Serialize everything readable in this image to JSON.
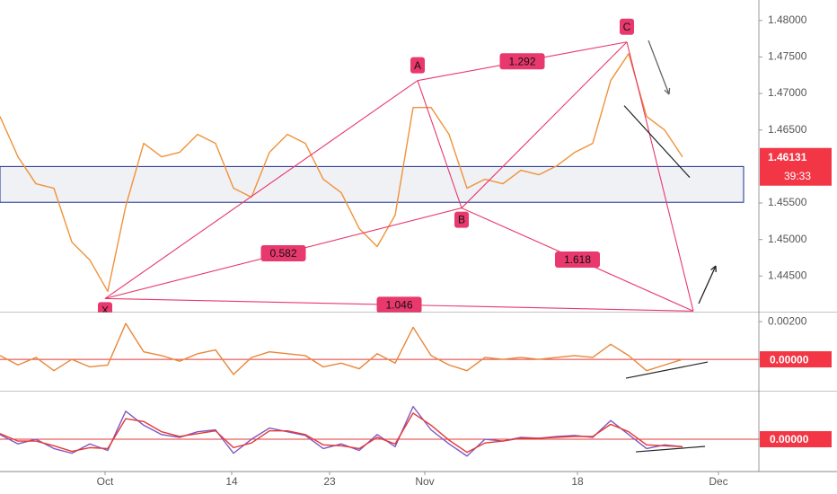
{
  "chart_data": [
    {
      "type": "line",
      "xlim": [
        0,
        41.5
      ],
      "ylim": [
        1.44,
        1.4828
      ],
      "yticks": [
        {
          "value": 1.48,
          "label": "1.48000"
        },
        {
          "value": 1.475,
          "label": "1.47500"
        },
        {
          "value": 1.47,
          "label": "1.47000"
        },
        {
          "value": 1.465,
          "label": "1.46500"
        },
        {
          "value": 1.455,
          "label": "1.45500"
        },
        {
          "value": 1.45,
          "label": "1.45000"
        },
        {
          "value": 1.445,
          "label": "1.44500"
        }
      ],
      "series": [
        {
          "name": null,
          "color": "#f0923a",
          "values": [
            1.46685,
            1.46133,
            1.45764,
            1.45703,
            1.44966,
            1.4472,
            1.4429,
            1.45457,
            1.46317,
            1.46133,
            1.46194,
            1.4644,
            1.46317,
            1.45703,
            1.4558,
            1.46194,
            1.4644,
            1.46317,
            1.45826,
            1.45641,
            1.4515,
            1.44904,
            1.45334,
            1.46808,
            1.46808,
            1.4644,
            1.45703,
            1.45826,
            1.45764,
            1.45948,
            1.45887,
            1.4601,
            1.46194,
            1.46317,
            1.47177,
            1.47545,
            1.46685,
            1.46501,
            1.46131
          ]
        }
      ],
      "zone": [
        1.4551,
        1.46
      ],
      "zone_color": "#1c2d8c",
      "pattern": {
        "color": "#e8386d",
        "points": [
          {
            "label": "X",
            "x": 5.85,
            "y": 1.44192
          },
          {
            "label": "A",
            "x": 23.25,
            "y": 1.47177
          },
          {
            "label": "B",
            "x": 25.7,
            "y": 1.45432
          },
          {
            "label": "C",
            "x": 34.9,
            "y": 1.47705
          },
          {
            "label": null,
            "x": 38.6,
            "y": 1.4402
          }
        ],
        "ratios": [
          0.582,
          1.292,
          1.618,
          1.046
        ]
      },
      "trendlines": [
        {
          "x": [
            34.75,
            38.4
          ],
          "y": [
            1.46833,
            1.4585
          ]
        }
      ],
      "last_price": 1.46131,
      "countdown": "39:33"
    },
    {
      "type": "line",
      "xlim": [
        0,
        41.5
      ],
      "ylim": [
        -0.00171,
        0.00248
      ],
      "yticks": [
        {
          "value": 0.002,
          "label": "0.00200"
        },
        {
          "value": 0,
          "label": "0.00000"
        }
      ],
      "series": [
        {
          "name": null,
          "color": "#e8873a",
          "values": [
            0.0002,
            -0.0003,
            0.0001,
            -0.0006,
            0.0,
            -0.0004,
            -0.0003,
            0.0019,
            0.0004,
            0.0002,
            -0.0001,
            0.0003,
            0.0005,
            -0.0008,
            0.0001,
            0.0004,
            0.0003,
            0.0002,
            -0.0004,
            -0.0002,
            -0.0005,
            0.0003,
            -0.0002,
            0.0017,
            0.0002,
            -0.0003,
            -0.0006,
            0.0001,
            0.0,
            0.0001,
            0.0,
            0.0001,
            0.0002,
            0.0001,
            0.0008,
            0.0002,
            -0.0006,
            -0.0003,
            0.0
          ]
        }
      ],
      "trendlines": [
        {
          "x": [
            34.85,
            39.4
          ],
          "y": [
            -0.001,
            -0.00014
          ]
        }
      ]
    },
    {
      "type": "line",
      "xlim": [
        0,
        41.5
      ],
      "ylim": [
        -0.00346,
        0.0051
      ],
      "yticks": [
        {
          "value": 0,
          "label": "0.00000"
        }
      ],
      "series": [
        {
          "name": null,
          "color": "#7e57c2",
          "values": [
            0.0005,
            -0.0005,
            0.0,
            -0.001,
            -0.0015,
            -0.0005,
            -0.0012,
            0.003,
            0.0015,
            0.0005,
            0.0002,
            0.0008,
            0.001,
            -0.0015,
            0.0,
            0.0012,
            0.0008,
            0.0004,
            -0.001,
            -0.0005,
            -0.0012,
            0.0005,
            -0.0008,
            0.0035,
            0.001,
            -0.0005,
            -0.0018,
            0.0,
            -0.0002,
            0.0002,
            0.0001,
            0.0003,
            0.0004,
            0.0002,
            0.002,
            0.0005,
            -0.001,
            -0.0006,
            -0.0008
          ]
        },
        {
          "name": null,
          "color": "#e53935",
          "values": [
            0.0006,
            -0.0002,
            -0.0002,
            -0.0007,
            -0.0013,
            -0.0009,
            -0.001,
            0.0022,
            0.0019,
            0.0008,
            0.0003,
            0.0006,
            0.0009,
            -0.0009,
            -0.0004,
            0.0009,
            0.0009,
            0.0005,
            -0.0006,
            -0.0007,
            -0.001,
            0.0002,
            -0.0005,
            0.0028,
            0.0015,
            -0.0001,
            -0.0014,
            -0.0004,
            -0.0002,
            0.0001,
            0.0001,
            0.0002,
            0.0003,
            0.0003,
            0.0016,
            0.0008,
            -0.0006,
            -0.0007,
            -0.0008
          ]
        }
      ],
      "trendlines": [
        {
          "x": [
            35.4,
            39.25
          ],
          "y": [
            -0.00135,
            -0.00077
          ]
        }
      ],
      "xticks": [
        {
          "value": 5.85,
          "label": "Oct"
        },
        {
          "value": 12.9,
          "label": "14"
        },
        {
          "value": 18.35,
          "label": "23"
        },
        {
          "value": 23.65,
          "label": "Nov"
        },
        {
          "value": 32.15,
          "label": "18"
        },
        {
          "value": 40,
          "label": "Dec"
        }
      ]
    }
  ]
}
